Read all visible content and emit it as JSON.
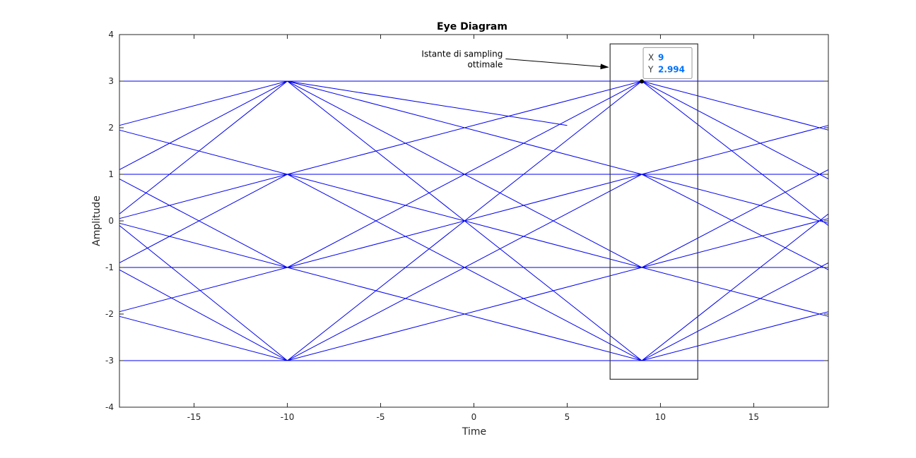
{
  "colors": {
    "trace": "#0000ee",
    "axis": "#262626",
    "datatip_value": "#0072ff",
    "box": "#333333"
  },
  "chart_data": {
    "type": "line",
    "title": "Eye Diagram",
    "xlabel": "Time",
    "ylabel": "Amplitude",
    "xlim": [
      -19,
      19
    ],
    "ylim": [
      -4,
      4
    ],
    "xticks": [
      -15,
      -10,
      -5,
      0,
      5,
      10,
      15
    ],
    "yticks": [
      -4,
      -3,
      -2,
      -1,
      0,
      1,
      2,
      3,
      4
    ],
    "grid": false,
    "levels": [
      -3,
      -1,
      1,
      3
    ],
    "sampling_instants": [
      -10,
      9
    ],
    "segments": [
      {
        "x": [
          -19,
          19
        ],
        "y": [
          3,
          3
        ]
      },
      {
        "x": [
          -19,
          19
        ],
        "y": [
          1,
          1
        ]
      },
      {
        "x": [
          -19,
          19
        ],
        "y": [
          -1,
          -1
        ]
      },
      {
        "x": [
          -19,
          19
        ],
        "y": [
          -3,
          -3
        ]
      },
      {
        "x": [
          -19,
          -10
        ],
        "y": [
          2.05,
          3
        ]
      },
      {
        "x": [
          -19,
          -10
        ],
        "y": [
          1.1,
          3
        ]
      },
      {
        "x": [
          -19,
          -10
        ],
        "y": [
          0.15,
          3
        ]
      },
      {
        "x": [
          -19,
          -10
        ],
        "y": [
          1.95,
          1
        ]
      },
      {
        "x": [
          -19,
          -10
        ],
        "y": [
          0.05,
          1
        ]
      },
      {
        "x": [
          -19,
          -10
        ],
        "y": [
          -0.9,
          1
        ]
      },
      {
        "x": [
          -19,
          -10
        ],
        "y": [
          0.9,
          -1
        ]
      },
      {
        "x": [
          -19,
          -10
        ],
        "y": [
          -0.05,
          -1
        ]
      },
      {
        "x": [
          -19,
          -10
        ],
        "y": [
          -1.95,
          -1
        ]
      },
      {
        "x": [
          -19,
          -10
        ],
        "y": [
          -0.1,
          -3
        ]
      },
      {
        "x": [
          -19,
          -10
        ],
        "y": [
          -1.05,
          -3
        ]
      },
      {
        "x": [
          -19,
          -10
        ],
        "y": [
          -2.05,
          -3
        ]
      },
      {
        "x": [
          -10,
          9
        ],
        "y": [
          3,
          1
        ]
      },
      {
        "x": [
          -10,
          9
        ],
        "y": [
          3,
          -1
        ]
      },
      {
        "x": [
          -10,
          9
        ],
        "y": [
          3,
          -3
        ]
      },
      {
        "x": [
          -10,
          5
        ],
        "y": [
          3,
          2.05
        ]
      },
      {
        "x": [
          -10,
          9
        ],
        "y": [
          1,
          3
        ]
      },
      {
        "x": [
          -10,
          9
        ],
        "y": [
          1,
          -1
        ]
      },
      {
        "x": [
          -10,
          9
        ],
        "y": [
          1,
          -3
        ]
      },
      {
        "x": [
          -10,
          9
        ],
        "y": [
          -1,
          3
        ]
      },
      {
        "x": [
          -10,
          9
        ],
        "y": [
          -1,
          1
        ]
      },
      {
        "x": [
          -10,
          9
        ],
        "y": [
          -1,
          -3
        ]
      },
      {
        "x": [
          -10,
          9
        ],
        "y": [
          -3,
          3
        ]
      },
      {
        "x": [
          -10,
          9
        ],
        "y": [
          -3,
          1
        ]
      },
      {
        "x": [
          -10,
          9
        ],
        "y": [
          -3,
          -1
        ]
      },
      {
        "x": [
          9,
          19
        ],
        "y": [
          3,
          1.95
        ]
      },
      {
        "x": [
          9,
          19
        ],
        "y": [
          3,
          0.9
        ]
      },
      {
        "x": [
          9,
          19
        ],
        "y": [
          3,
          -0.1
        ]
      },
      {
        "x": [
          9,
          19
        ],
        "y": [
          1,
          2.05
        ]
      },
      {
        "x": [
          9,
          19
        ],
        "y": [
          1,
          -0.05
        ]
      },
      {
        "x": [
          9,
          19
        ],
        "y": [
          1,
          -1.05
        ]
      },
      {
        "x": [
          9,
          19
        ],
        "y": [
          -1,
          1.1
        ]
      },
      {
        "x": [
          9,
          19
        ],
        "y": [
          -1,
          0.05
        ]
      },
      {
        "x": [
          9,
          19
        ],
        "y": [
          -1,
          -2.05
        ]
      },
      {
        "x": [
          9,
          19
        ],
        "y": [
          -3,
          0.15
        ]
      },
      {
        "x": [
          9,
          19
        ],
        "y": [
          -3,
          -0.9
        ]
      },
      {
        "x": [
          9,
          19
        ],
        "y": [
          -3,
          -1.95
        ]
      }
    ],
    "annotation": {
      "lines": [
        "Istante di sampling",
        "ottimale"
      ],
      "arrow_from": [
        1.7,
        3.48
      ],
      "arrow_to": [
        7.2,
        3.3
      ]
    },
    "highlight_box": {
      "x": [
        7.3,
        12
      ],
      "y": [
        -3.4,
        3.8
      ]
    },
    "datatip": {
      "x_label": "X",
      "x_value": "9",
      "y_label": "Y",
      "y_value": "2.994",
      "point": [
        9,
        2.994
      ]
    }
  }
}
